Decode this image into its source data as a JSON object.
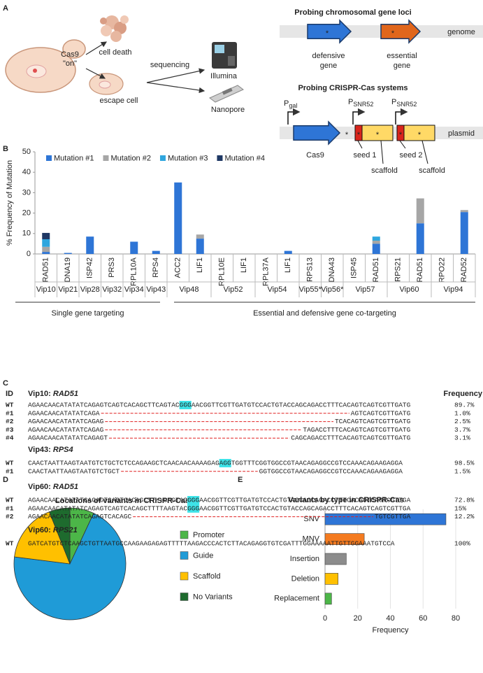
{
  "panel_labels": [
    "A",
    "B",
    "C",
    "D",
    "E"
  ],
  "diagram": {
    "cas9_on": [
      "Cas9",
      "\"on\""
    ],
    "cell_death": "cell death",
    "escape_cell": "escape cell",
    "sequencing": "sequencing",
    "illumina": "Illumina",
    "nanopore": "Nanopore",
    "asterisk": "*",
    "chromosomal": {
      "title": "Probing chromosomal gene loci",
      "track": "genome",
      "defensive": [
        "defensive",
        "gene"
      ],
      "essential": [
        "essential",
        "gene"
      ]
    },
    "crispr": {
      "title": "Probing CRISPR-Cas systems",
      "track": "plasmid",
      "pgal": {
        "main": "P",
        "sub": "gal"
      },
      "psnr": [
        {
          "main": "P",
          "sub": "SNR52"
        },
        {
          "main": "P",
          "sub": "SNR52"
        }
      ],
      "cas9": "Cas9",
      "seed1": "seed 1",
      "scaffold1": "scaffold",
      "seed2": "seed 2",
      "scaffold2": "scaffold"
    }
  },
  "chart_data": [
    {
      "type": "stacked-bar",
      "ylabel": "% Frequency of Mutation",
      "legend": "upper left",
      "categories": [
        "RAD51",
        "DNA19",
        "ISP42",
        "PRS3",
        "RPL10A",
        "RPS4",
        "ACC2",
        "LIF1",
        "RPL10E",
        "LIF1",
        "RPL37A",
        "LIF1",
        "RPS13",
        "DNA43",
        "ISP45",
        "RAD51",
        "RPS21",
        "RAD51",
        "RPO22",
        "RAD52"
      ],
      "category_groups": [
        "Vip10",
        "Vip21",
        "Vip28",
        "Vip32",
        "Vip34",
        "Vip43",
        "Vip48",
        "Vip48",
        "Vip52",
        "Vip52",
        "Vip54",
        "Vip54",
        "Vip55*",
        "Vip56*",
        "Vip57",
        "Vip57",
        "Vip60",
        "Vip60",
        "Vip94",
        "Vip94"
      ],
      "category_sections": [
        "Single gene targeting",
        "Single gene targeting",
        "Single gene targeting",
        "Single gene targeting",
        "Single gene targeting",
        "Single gene targeting",
        "Essential and defensive gene co-targeting",
        "Essential and defensive gene co-targeting",
        "Essential and defensive gene co-targeting",
        "Essential and defensive gene co-targeting",
        "Essential and defensive gene co-targeting",
        "Essential and defensive gene co-targeting",
        "Essential and defensive gene co-targeting",
        "Essential and defensive gene co-targeting",
        "Essential and defensive gene co-targeting",
        "Essential and defensive gene co-targeting",
        "Essential and defensive gene co-targeting",
        "Essential and defensive gene co-targeting",
        "Essential and defensive gene co-targeting",
        "Essential and defensive gene co-targeting"
      ],
      "series": [
        {
          "name": "Mutation #1",
          "color": "#2e75d6",
          "values": [
            1.0,
            0.5,
            8.5,
            0,
            6,
            1.5,
            35,
            7.5,
            0,
            0,
            0,
            1.5,
            0,
            0,
            0,
            5,
            0,
            15,
            0,
            20.5
          ]
        },
        {
          "name": "Mutation #2",
          "color": "#a6a6a6",
          "values": [
            2.5,
            0,
            0,
            0,
            0,
            0,
            0,
            2,
            0,
            0,
            0,
            0,
            0,
            0,
            0,
            1.5,
            0,
            12.2,
            0,
            1
          ]
        },
        {
          "name": "Mutation #3",
          "color": "#2fa6de",
          "values": [
            3.7,
            0,
            0,
            0,
            0,
            0,
            0,
            0,
            0,
            0,
            0,
            0,
            0,
            0,
            0,
            2,
            0,
            0,
            0,
            0
          ]
        },
        {
          "name": "Mutation #4",
          "color": "#1f3864",
          "values": [
            3.1,
            0,
            0,
            0,
            0,
            0,
            0,
            0,
            0,
            0,
            0,
            0,
            0,
            0,
            0,
            0,
            0,
            0,
            0,
            0
          ]
        }
      ],
      "ylim": [
        0,
        50
      ],
      "yticks": [
        0,
        10,
        20,
        30,
        40,
        50
      ]
    },
    {
      "type": "pie",
      "title": "Locations of variants in CRISPR-Cas",
      "categories": [
        "Promoter",
        "Guide",
        "Scaffold",
        "No Variants"
      ],
      "values": [
        7,
        70,
        17,
        6
      ],
      "colors": [
        "#4cb648",
        "#1f9bd7",
        "#ffc000",
        "#1e6b2e"
      ]
    },
    {
      "type": "hbar",
      "title": "Variants by type in CRISPR-Cas",
      "xlabel": "Frequency",
      "categories": [
        "SNV",
        "MNV",
        "Insertion",
        "Deletion",
        "Replacement"
      ],
      "values": [
        74,
        24,
        13,
        8,
        4
      ],
      "colors": [
        "#2e75d6",
        "#f47b20",
        "#8c8c8c",
        "#ffc000",
        "#4cb648"
      ],
      "xlim": [
        0,
        80
      ],
      "xticks": [
        0,
        20,
        40,
        60,
        80
      ],
      "grid": true
    }
  ],
  "alignment": {
    "id_header": "ID",
    "freq_header": "Frequency",
    "sections": [
      {
        "title": "Vip10: ",
        "gene": "RAD51",
        "rows": [
          {
            "id": "WT",
            "seq": [
              {
                "text": "AGAACAACATATATCAGAGTCAGTCACAGCTTCAGTAC"
              },
              {
                "text": "GGG",
                "mark": "pam"
              },
              {
                "text": "AACGGTTCGTTGATGTCCACTGTACCAGCAGACCTTTCACAGTCAGTCGTTGATG"
              }
            ],
            "freq": "89.7%"
          },
          {
            "id": "#1",
            "seq": [
              {
                "text": "AGAACAACATATATCAGA"
              },
              {
                "gap": true
              },
              {
                "text": "AGTCAGTCGTTGATG"
              }
            ],
            "freq": "1.0%"
          },
          {
            "id": "#2",
            "seq": [
              {
                "text": "AGAACAACATATATCAGAG"
              },
              {
                "gap": true
              },
              {
                "text": "TCACAGTCAGTCGTTGATG"
              }
            ],
            "freq": "2.5%"
          },
          {
            "id": "#3",
            "seq": [
              {
                "text": "AGAACAACATATATCAGAG"
              },
              {
                "gap": true
              },
              {
                "text": "TAGACCTTTCACAGTCAGTCGTTGATG"
              }
            ],
            "freq": "3.7%"
          },
          {
            "id": "#4",
            "seq": [
              {
                "text": "AGAACAACATATATCAGAGT"
              },
              {
                "gap": true
              },
              {
                "text": "CAGCAGACCTTTCACAGTCAGTCGTTGATG"
              }
            ],
            "freq": "3.1%"
          }
        ]
      },
      {
        "title": "Vip43: ",
        "gene": "RPS4",
        "rows": [
          {
            "id": "WT",
            "seq": [
              {
                "text": "CAACTAATTAAGTAATGTCTGCTCTCCAGAAGCTCAACAACAAAAGAG"
              },
              {
                "text": "AGG",
                "mark": "pam"
              },
              {
                "text": "TGGTTTCGGTGGCCGTAACAGAGGCCGTCCAAACAGAAGAGGA"
              }
            ],
            "freq": "98.5%"
          },
          {
            "id": "#1",
            "seq": [
              {
                "text": "CAACTAATTAAGTAATGTCTGCT"
              },
              {
                "gap": true
              },
              {
                "text": "GGTGGCCGTAACAGAGGCCGTCCAAACAGAAGAGGA"
              }
            ],
            "freq": "1.5%"
          }
        ]
      },
      {
        "title": "Vip60: ",
        "gene": "RAD51",
        "rows": [
          {
            "id": "WT",
            "seq": [
              {
                "text": "AGAACAACATATATCAGAGTCAGTCACAGCTT"
              },
              {
                "text": "--",
                "mark": "insert"
              },
              {
                "text": "CAGTAC"
              },
              {
                "text": "GGG",
                "mark": "pam"
              },
              {
                "text": "AACGGTTCGTTGATGTCCACTGTACCAGCAGACCTTTCACAGTCAGTCGTTGA"
              }
            ],
            "freq": "72.8%"
          },
          {
            "id": "#1",
            "seq": [
              {
                "text": "AGAACAACATATATCAGAGTCAGTCACAGCTT"
              },
              {
                "text": "TT",
                "mark": "insert"
              },
              {
                "text": "AAGTAC"
              },
              {
                "text": "GGG",
                "mark": "pam"
              },
              {
                "text": "AACGGTTCGTTGATGTCCACTGTACCAGCAGACCTTTCACAGTCAGTCGTTGA"
              }
            ],
            "freq": "15%"
          },
          {
            "id": "#2",
            "seq": [
              {
                "text": "AGAACAACATATATCAGAGTCACAGC"
              },
              {
                "gap": true
              },
              {
                "text": "TGTCGTTGA"
              }
            ],
            "freq": "12.2%"
          }
        ]
      },
      {
        "title": "Vip60: ",
        "gene": "RPS21",
        "rows": [
          {
            "id": "WT",
            "seq": [
              {
                "text": "GATCATGTCTCAAGCTGTTAATGCCAAGAAGAGAGTTTTTAAGACCCACTCTTACAGAGGTGTCGATTTGGAAAAATTGTTGGAAATGTCCA"
              }
            ],
            "freq": "100%"
          }
        ]
      }
    ]
  }
}
